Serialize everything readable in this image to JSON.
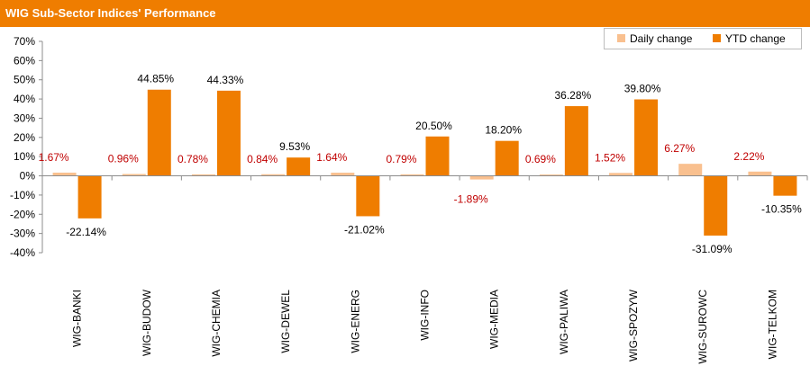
{
  "header": {
    "title": "WIG Sub-Sector Indices' Performance"
  },
  "colors": {
    "accent": "#ef7d00",
    "daily": "#f9c08f",
    "ytd": "#ef7d00",
    "daily_label": "#c00000",
    "ytd_label": "#000000"
  },
  "chart_data": {
    "type": "bar",
    "title": "WIG Sub-Sector Indices' Performance",
    "categories": [
      "WIG-BANKI",
      "WIG-BUDOW",
      "WIG-CHEMIA",
      "WIG-DEWEL",
      "WIG-ENERG",
      "WIG-INFO",
      "WIG-MEDIA",
      "WIG-PALIWA",
      "WIG-SPOZYW",
      "WIG-SUROWC",
      "WIG-TELKOM"
    ],
    "series": [
      {
        "name": "Daily change",
        "values": [
          1.67,
          0.96,
          0.78,
          0.84,
          1.64,
          0.79,
          -1.89,
          0.69,
          1.52,
          6.27,
          2.22
        ],
        "labels": [
          "1.67%",
          "0.96%",
          "0.78%",
          "0.84%",
          "1.64%",
          "0.79%",
          "-1.89%",
          "0.69%",
          "1.52%",
          "6.27%",
          "2.22%"
        ]
      },
      {
        "name": "YTD change",
        "values": [
          -22.14,
          44.85,
          44.33,
          9.53,
          -21.02,
          20.5,
          18.2,
          36.28,
          39.8,
          -31.09,
          -10.35
        ],
        "labels": [
          "-22.14%",
          "44.85%",
          "44.33%",
          "9.53%",
          "-21.02%",
          "20.50%",
          "18.20%",
          "36.28%",
          "39.80%",
          "-31.09%",
          "-10.35%"
        ]
      }
    ],
    "ylim": [
      -40,
      70
    ],
    "yticks": [
      -40,
      -30,
      -20,
      -10,
      0,
      10,
      20,
      30,
      40,
      50,
      60,
      70
    ],
    "ytick_labels": [
      "-40%",
      "-30%",
      "-20%",
      "-10%",
      "0%",
      "10%",
      "20%",
      "30%",
      "40%",
      "50%",
      "60%",
      "70%"
    ],
    "grid": false,
    "legend": {
      "position": "top-right",
      "entries": [
        "Daily change",
        "YTD change"
      ]
    }
  }
}
